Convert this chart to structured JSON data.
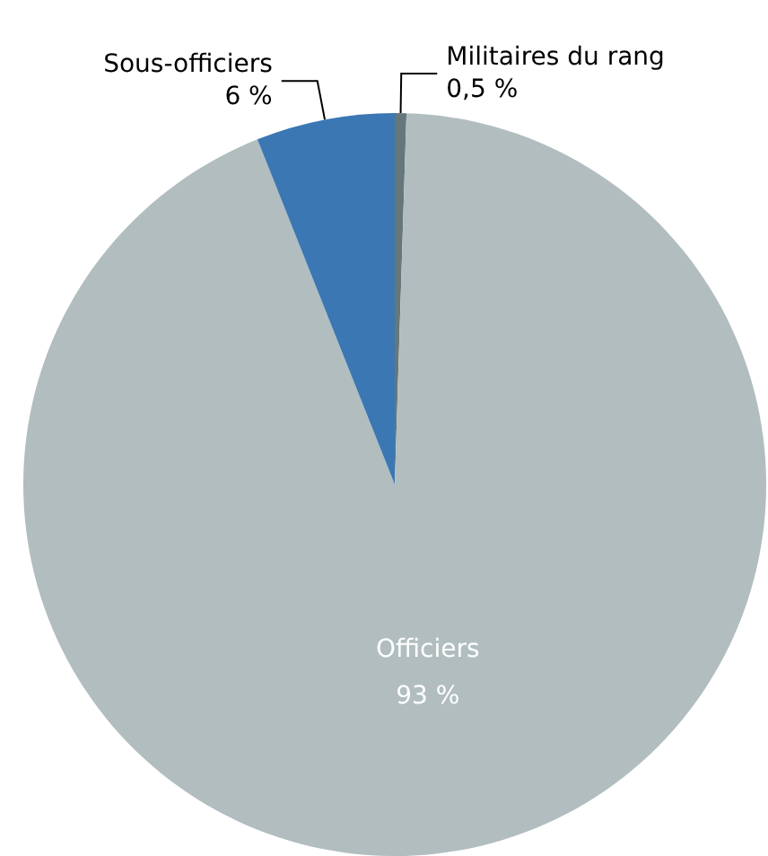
{
  "chart_data": {
    "type": "pie",
    "categories": [
      "Militaires du rang",
      "Officiers",
      "Sous-officiers"
    ],
    "values": [
      0.5,
      93,
      6
    ],
    "value_labels": [
      "0,5 %",
      "93 %",
      "6 %"
    ],
    "colors": [
      "#65777a",
      "#b1bdbf",
      "#3b77b3"
    ],
    "legend": false
  }
}
